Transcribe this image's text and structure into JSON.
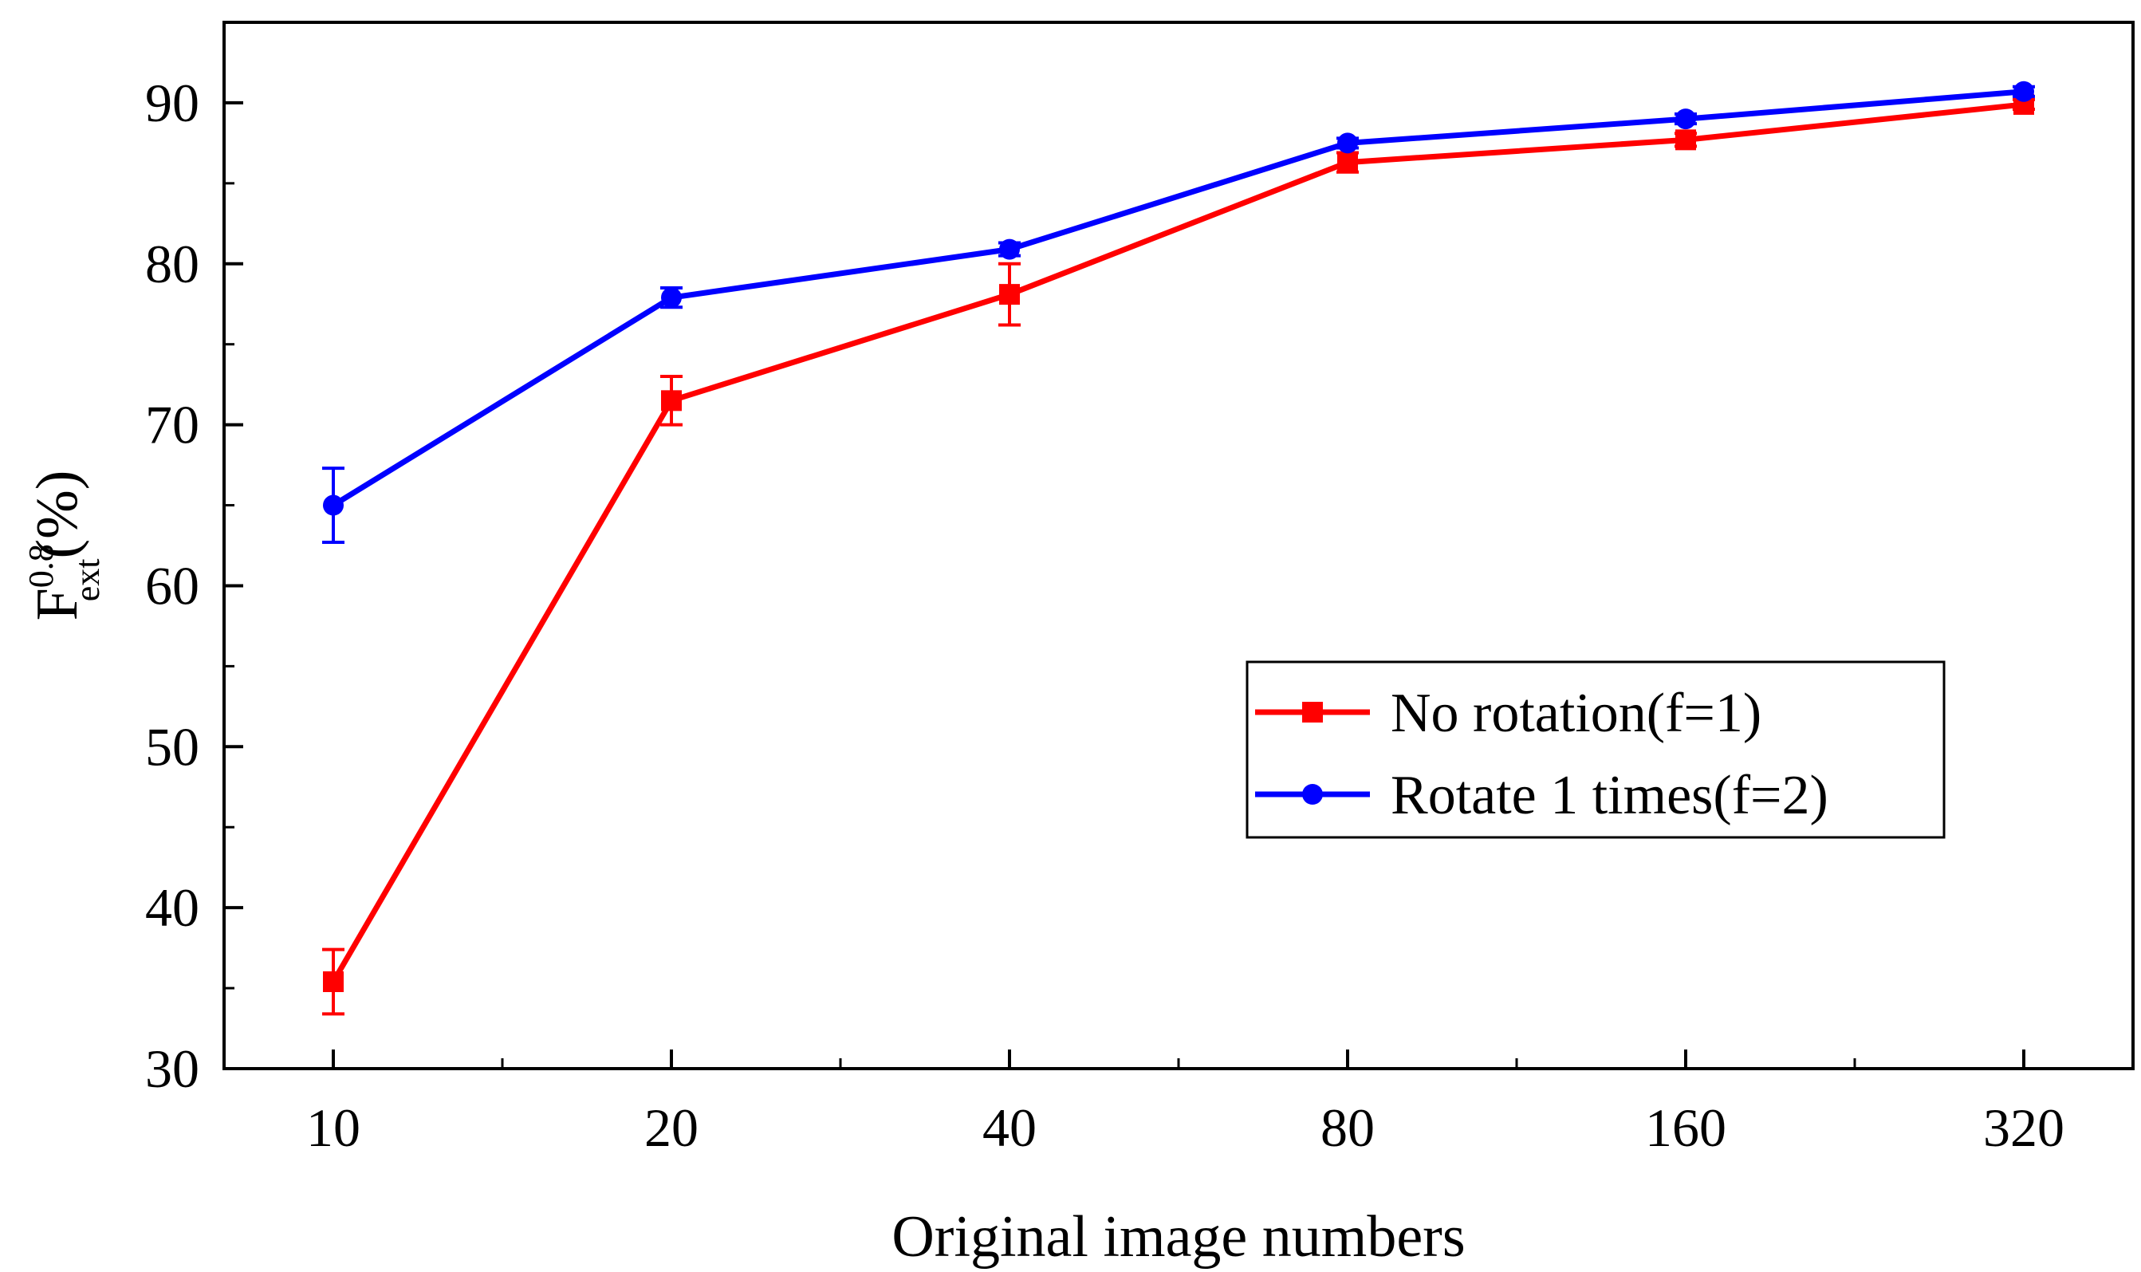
{
  "chart_data": {
    "type": "line",
    "title": "",
    "xlabel": "Original image numbers",
    "ylabel": {
      "base": "F",
      "superscript": "0.8",
      "subscript": "ext",
      "suffix": "(%)"
    },
    "categories": [
      "10",
      "20",
      "40",
      "80",
      "160",
      "320"
    ],
    "ylim": [
      30,
      95
    ],
    "yticks": [
      "30",
      "40",
      "50",
      "60",
      "70",
      "80",
      "90"
    ],
    "grid": false,
    "legend_position": "lower-right",
    "series": [
      {
        "name": "No rotation(f=1)",
        "color": "#ff0000",
        "marker": "square",
        "values": [
          35.4,
          71.5,
          78.1,
          86.3,
          87.7,
          89.9
        ],
        "errors": [
          2.0,
          1.5,
          1.9,
          0.6,
          0.4,
          0.3
        ]
      },
      {
        "name": "Rotate 1 times(f=2)",
        "color": "#0000ff",
        "marker": "circle",
        "values": [
          65.0,
          77.9,
          80.9,
          87.5,
          89.0,
          90.7
        ],
        "errors": [
          2.3,
          0.6,
          0.4,
          0.3,
          0.3,
          0.3
        ]
      }
    ]
  }
}
